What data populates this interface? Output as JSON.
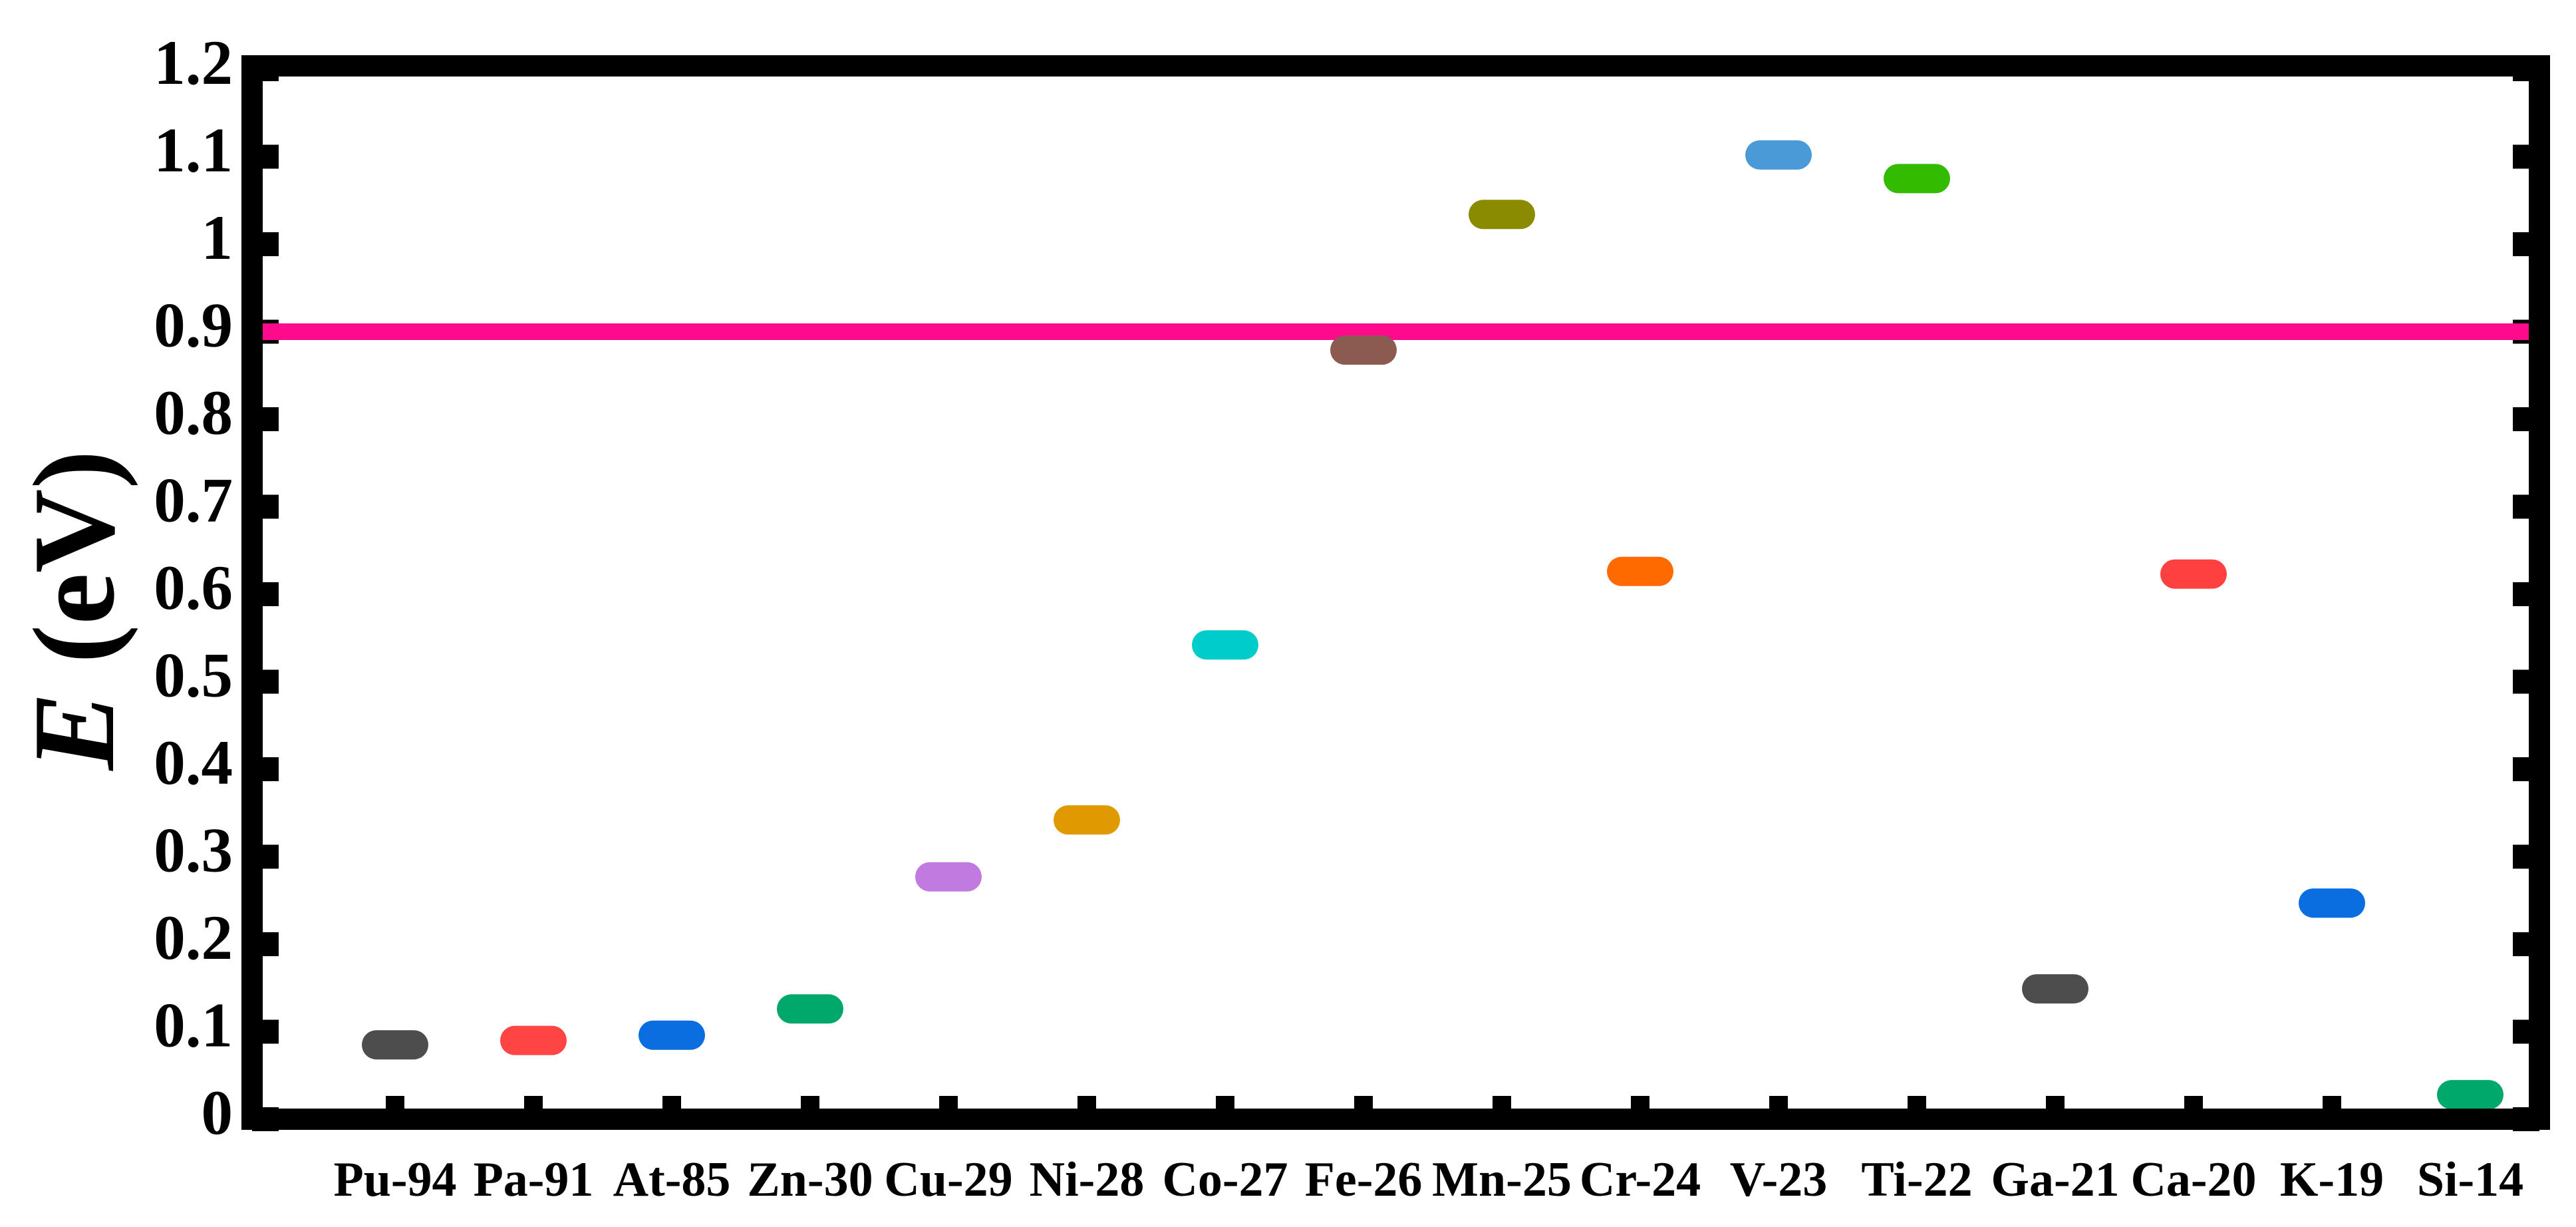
{
  "chart_data": {
    "type": "level",
    "y_label": {
      "symbol": "E",
      "unit": "(eV)"
    },
    "categories": [
      "Pu-94",
      "Pa-91",
      "At-85",
      "Zn-30",
      "Cu-29",
      "Ni-28",
      "Co-27",
      "Fe-26",
      "Mn-25",
      "Cr-24",
      "V-23",
      "Ti-22",
      "Ga-21",
      "Ca-20",
      "K-19",
      "Si-14"
    ],
    "values": [
      0.085,
      0.09,
      0.096,
      0.126,
      0.277,
      0.342,
      0.542,
      0.879,
      1.034,
      0.626,
      1.102,
      1.075,
      0.149,
      0.623,
      0.247,
      0.028
    ],
    "colors": [
      "#4d4d4d",
      "#ff4444",
      "#0a6ee0",
      "#00a86b",
      "#c07ae0",
      "#e09a00",
      "#00cccc",
      "#8b5a50",
      "#8b8b00",
      "#ff6a00",
      "#4a9ad8",
      "#33bb00",
      "#4d4d4d",
      "#ff4040",
      "#0a6ee0",
      "#00a86b"
    ],
    "reference_line": 0.9,
    "reference_color": "#ff0a8c",
    "ylim": [
      0,
      1.2
    ],
    "yticks": [
      0,
      0.1,
      0.2,
      0.3,
      0.4,
      0.5,
      0.6,
      0.7,
      0.8,
      0.9,
      1,
      1.1,
      1.2
    ]
  }
}
